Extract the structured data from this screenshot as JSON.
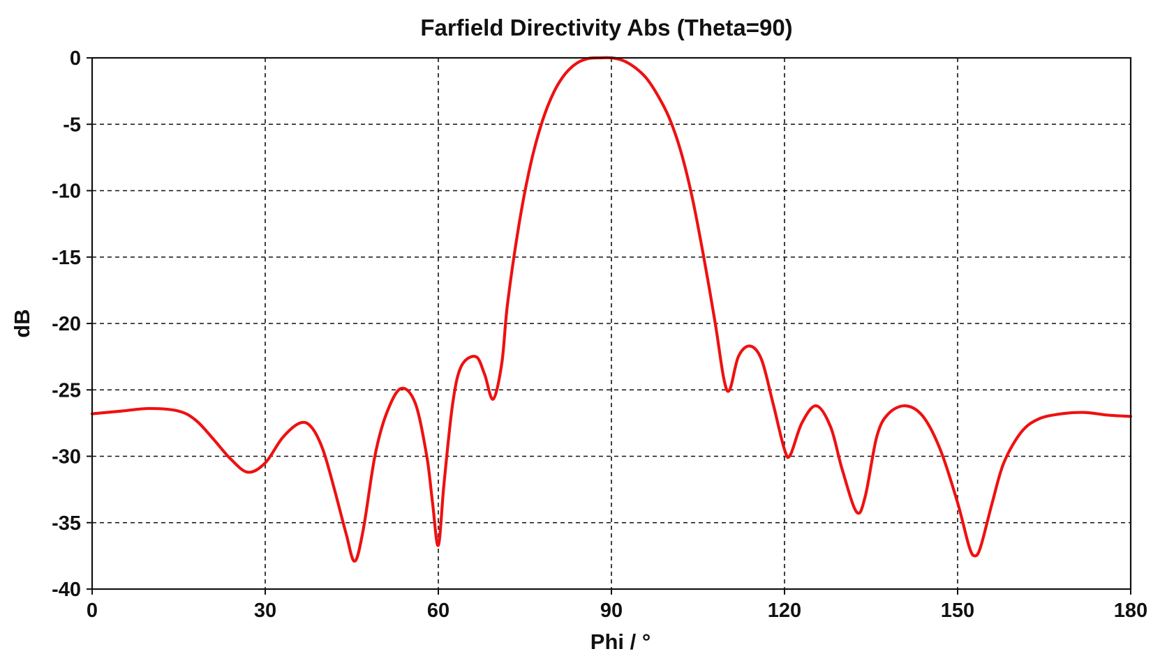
{
  "chart_data": {
    "type": "line",
    "title": "Farfield Directivity Abs (Theta=90)",
    "xlabel": "Phi / °",
    "ylabel": "dB",
    "xlim": [
      0,
      180
    ],
    "ylim": [
      -40,
      0
    ],
    "xticks": [
      0,
      30,
      60,
      90,
      120,
      150,
      180
    ],
    "yticks": [
      0,
      -5,
      -10,
      -15,
      -20,
      -25,
      -30,
      -35,
      -40
    ],
    "grid": true,
    "series": [
      {
        "color": "#ee1111",
        "x": [
          0,
          5,
          10,
          15,
          18,
          21,
          24,
          27,
          30,
          33,
          36,
          38,
          40,
          42,
          44,
          45.5,
          47,
          49,
          51,
          53.5,
          56,
          58,
          59,
          60,
          61,
          62.5,
          64,
          66.5,
          68,
          69.5,
          71,
          72,
          74,
          76,
          78,
          80,
          82,
          84,
          86,
          88,
          90,
          92,
          94,
          96,
          98,
          100,
          102,
          104,
          106,
          108,
          109.5,
          110.5,
          112,
          114,
          116,
          118,
          120,
          121,
          123,
          125.5,
          128,
          130,
          132.5,
          134,
          136,
          138,
          141,
          144,
          147,
          150,
          152,
          153,
          154,
          156,
          158,
          161,
          164,
          168,
          172,
          176,
          180
        ],
        "y": [
          -26.8,
          -26.6,
          -26.4,
          -26.6,
          -27.3,
          -28.7,
          -30.2,
          -31.2,
          -30.5,
          -28.6,
          -27.5,
          -27.8,
          -29.5,
          -32.5,
          -35.8,
          -37.9,
          -35.5,
          -30.0,
          -26.8,
          -24.9,
          -26.0,
          -30.0,
          -33.5,
          -36.7,
          -32.0,
          -26.0,
          -23.2,
          -22.5,
          -23.8,
          -25.7,
          -23.0,
          -18.5,
          -12.5,
          -8.0,
          -4.8,
          -2.6,
          -1.2,
          -0.4,
          -0.05,
          0,
          0,
          -0.2,
          -0.7,
          -1.5,
          -2.8,
          -4.5,
          -7.0,
          -10.5,
          -15.0,
          -20.0,
          -24.2,
          -25.0,
          -22.5,
          -21.7,
          -22.7,
          -26.0,
          -29.5,
          -29.9,
          -27.5,
          -26.2,
          -27.8,
          -31.0,
          -34.2,
          -33.0,
          -28.5,
          -26.8,
          -26.2,
          -27.0,
          -29.5,
          -33.5,
          -36.8,
          -37.5,
          -36.8,
          -33.5,
          -30.5,
          -28.2,
          -27.2,
          -26.8,
          -26.7,
          -26.9,
          -27.0
        ]
      }
    ]
  }
}
